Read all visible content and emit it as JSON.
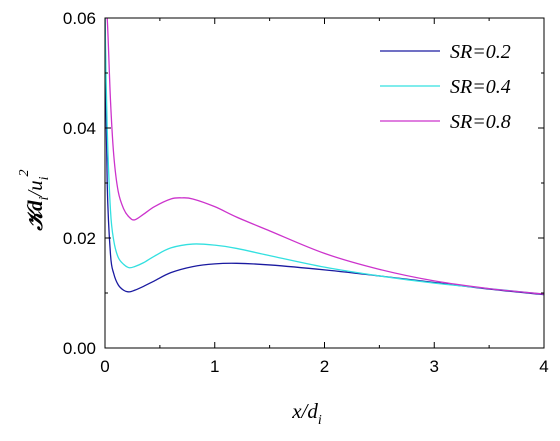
{
  "chart_data": {
    "type": "line",
    "title": "",
    "xlim": [
      0,
      4
    ],
    "ylim": [
      0,
      0.06
    ],
    "x_ticks": [
      "0",
      "1",
      "2",
      "3",
      "4"
    ],
    "y_ticks": [
      "0.00",
      "0.02",
      "0.04",
      "0.06"
    ],
    "xlabel": {
      "main": "x/d",
      "sub": "i"
    },
    "ylabel": {
      "main": "𝒦d",
      "sub1": "i",
      "mid": "/u",
      "sub2": "i",
      "sup": "2"
    },
    "grid": false,
    "legend_position": "top-right",
    "series": [
      {
        "name": "SR=0.2",
        "color": "#1a1aa0",
        "x": [
          0.0,
          0.02,
          0.05,
          0.08,
          0.12,
          0.17,
          0.22,
          0.27,
          0.35,
          0.45,
          0.6,
          0.8,
          1.0,
          1.2,
          1.5,
          2.0,
          2.5,
          3.0,
          3.5,
          4.0
        ],
        "y": [
          0.06,
          0.03,
          0.017,
          0.0135,
          0.0115,
          0.0105,
          0.0102,
          0.0105,
          0.0112,
          0.0122,
          0.0137,
          0.0148,
          0.0153,
          0.0154,
          0.0151,
          0.0142,
          0.0131,
          0.0119,
          0.0107,
          0.0097
        ]
      },
      {
        "name": "SR=0.4",
        "color": "#33e0e0",
        "x": [
          0.0,
          0.02,
          0.05,
          0.08,
          0.12,
          0.17,
          0.22,
          0.27,
          0.35,
          0.45,
          0.6,
          0.8,
          1.0,
          1.2,
          1.5,
          2.0,
          2.5,
          3.0,
          3.5,
          4.0
        ],
        "y": [
          0.06,
          0.04,
          0.025,
          0.0195,
          0.0165,
          0.0152,
          0.0146,
          0.0148,
          0.0155,
          0.0167,
          0.0182,
          0.0189,
          0.0187,
          0.0181,
          0.0168,
          0.0147,
          0.0131,
          0.0118,
          0.0108,
          0.0098
        ]
      },
      {
        "name": "SR=0.8",
        "color": "#cc33cc",
        "x": [
          0.0,
          0.02,
          0.05,
          0.08,
          0.12,
          0.17,
          0.22,
          0.27,
          0.35,
          0.45,
          0.6,
          0.7,
          0.8,
          1.0,
          1.2,
          1.5,
          2.0,
          2.5,
          3.0,
          3.5,
          4.0
        ],
        "y": [
          0.06,
          0.06,
          0.045,
          0.035,
          0.0285,
          0.0253,
          0.0238,
          0.0233,
          0.0243,
          0.0257,
          0.0271,
          0.0273,
          0.0271,
          0.0257,
          0.0238,
          0.0213,
          0.0172,
          0.0143,
          0.0122,
          0.0108,
          0.0098
        ]
      }
    ]
  }
}
